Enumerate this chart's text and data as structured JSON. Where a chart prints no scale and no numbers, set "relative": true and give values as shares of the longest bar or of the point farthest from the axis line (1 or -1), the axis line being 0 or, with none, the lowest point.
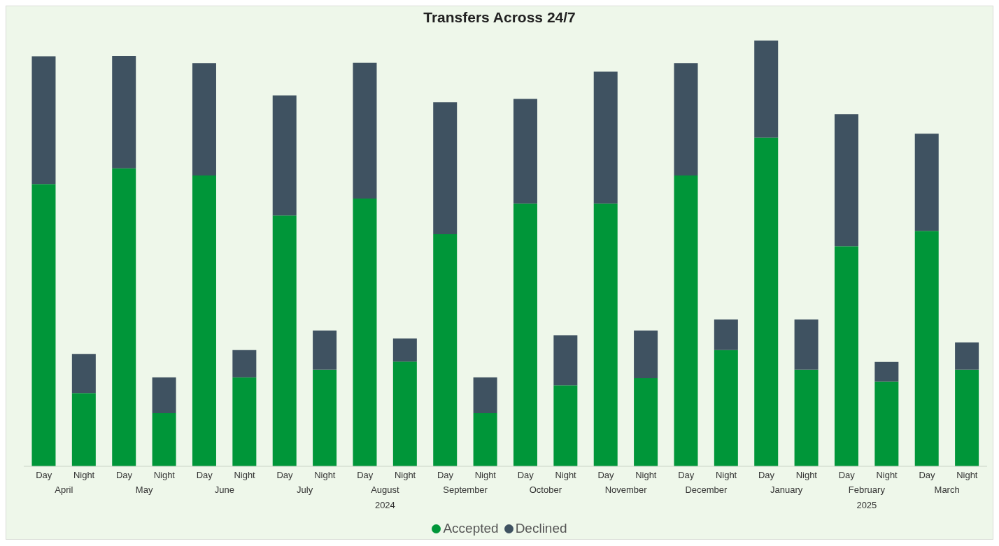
{
  "chart_data": {
    "type": "bar",
    "title": "Transfers Across 24/7",
    "relative": true,
    "stacked": true,
    "legend": "bottom",
    "categories": [
      "Day",
      "Night",
      "Day",
      "Night",
      "Day",
      "Night",
      "Day",
      "Night",
      "Day",
      "Night",
      "Day",
      "Night",
      "Day",
      "Night",
      "Day",
      "Night",
      "Day",
      "Night",
      "Day",
      "Night",
      "Day",
      "Night",
      "Day",
      "Night"
    ],
    "series": [
      {
        "name": "Accepted",
        "color": "#009639",
        "values": [
          0.663,
          0.172,
          0.7,
          0.125,
          0.683,
          0.209,
          0.589,
          0.227,
          0.629,
          0.246,
          0.545,
          0.125,
          0.617,
          0.19,
          0.617,
          0.207,
          0.683,
          0.273,
          0.772,
          0.227,
          0.517,
          0.199,
          0.553,
          0.227
        ]
      },
      {
        "name": "Declined",
        "color": "#3f5261",
        "values": [
          0.3,
          0.092,
          0.264,
          0.084,
          0.264,
          0.064,
          0.282,
          0.092,
          0.319,
          0.054,
          0.31,
          0.084,
          0.246,
          0.118,
          0.31,
          0.112,
          0.264,
          0.072,
          0.228,
          0.118,
          0.31,
          0.046,
          0.228,
          0.064
        ]
      }
    ],
    "annotations": [
      "April",
      "May",
      "June",
      "July",
      "August",
      "September",
      "October",
      "November",
      "December",
      "January",
      "February",
      "March",
      "2024",
      "2025"
    ]
  }
}
